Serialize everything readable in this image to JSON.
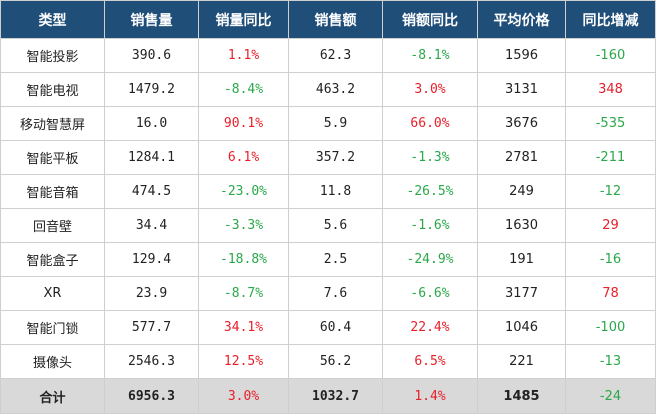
{
  "table": {
    "headers": [
      "类型",
      "销售量",
      "销量同比",
      "销售额",
      "销额同比",
      "平均价格",
      "同比增减"
    ],
    "colors": {
      "header_bg": "#1f4e79",
      "positive": "#e8202a",
      "negative": "#2aa84a",
      "total_bg": "#d9d9d9"
    },
    "rows": [
      [
        "智能投影",
        "390.6",
        "1.1%",
        "62.3",
        "-8.1%",
        "1596",
        "-160"
      ],
      [
        "智能电视",
        "1479.2",
        "-8.4%",
        "463.2",
        "3.0%",
        "3131",
        "348"
      ],
      [
        "移动智慧屏",
        "16.0",
        "90.1%",
        "5.9",
        "66.0%",
        "3676",
        "-535"
      ],
      [
        "智能平板",
        "1284.1",
        "6.1%",
        "357.2",
        "-1.3%",
        "2781",
        "-211"
      ],
      [
        "智能音箱",
        "474.5",
        "-23.0%",
        "11.8",
        "-26.5%",
        "249",
        "-12"
      ],
      [
        "回音壁",
        "34.4",
        "-3.3%",
        "5.6",
        "-1.6%",
        "1630",
        "29"
      ],
      [
        "智能盒子",
        "129.4",
        "-18.8%",
        "2.5",
        "-24.9%",
        "191",
        "-16"
      ],
      [
        "XR",
        "23.9",
        "-8.7%",
        "7.6",
        "-6.6%",
        "3177",
        "78"
      ],
      [
        "智能门锁",
        "577.7",
        "34.1%",
        "60.4",
        "22.4%",
        "1046",
        "-100"
      ],
      [
        "摄像头",
        "2546.3",
        "12.5%",
        "56.2",
        "6.5%",
        "221",
        "-13"
      ]
    ],
    "total": [
      "合计",
      "6956.3",
      "3.0%",
      "1032.7",
      "1.4%",
      "1485",
      "-24"
    ]
  }
}
